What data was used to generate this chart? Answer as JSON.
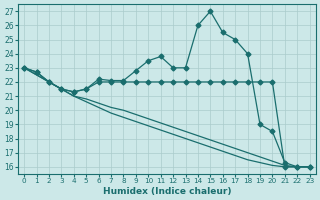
{
  "xlabel": "Humidex (Indice chaleur)",
  "xlim": [
    -0.5,
    23.5
  ],
  "ylim": [
    15.5,
    27.5
  ],
  "xticks": [
    0,
    1,
    2,
    3,
    4,
    5,
    6,
    7,
    8,
    9,
    10,
    11,
    12,
    13,
    14,
    15,
    16,
    17,
    18,
    19,
    20,
    21,
    22,
    23
  ],
  "yticks": [
    16,
    17,
    18,
    19,
    20,
    21,
    22,
    23,
    24,
    25,
    26,
    27
  ],
  "bg_color": "#cce8e8",
  "grid_color": "#aacccc",
  "line_color": "#1a6e6e",
  "lines": [
    {
      "x": [
        0,
        1,
        2,
        3,
        4,
        5,
        6,
        7,
        8,
        9,
        10,
        11,
        12,
        13,
        14,
        15,
        16,
        17,
        18,
        19,
        20,
        21,
        22,
        23
      ],
      "y": [
        23,
        22.7,
        22.0,
        21.5,
        21.3,
        21.5,
        22.2,
        22.1,
        22.1,
        22.8,
        23.5,
        23.8,
        23.0,
        23.0,
        26.0,
        27.0,
        25.5,
        25.0,
        24.0,
        19.0,
        18.5,
        16.3,
        16.0,
        16.0
      ]
    },
    {
      "x": [
        0,
        1,
        2,
        3,
        4,
        5,
        6,
        7,
        8,
        9,
        10,
        11,
        12,
        13,
        14,
        15,
        16,
        17,
        18,
        19,
        20,
        21,
        22,
        23
      ],
      "y": [
        23,
        22.7,
        22.0,
        21.5,
        21.3,
        21.5,
        22.0,
        22.0,
        22.0,
        22.0,
        22.0,
        22.0,
        22.0,
        22.0,
        22.0,
        22.0,
        22.0,
        22.0,
        22.0,
        22.0,
        22.0,
        16.0,
        16.0,
        16.0
      ]
    },
    {
      "x": [
        0,
        1,
        2,
        3,
        4,
        5,
        6,
        7,
        8,
        9,
        10,
        11,
        12,
        13,
        14,
        15,
        16,
        17,
        18,
        19,
        20,
        21,
        22,
        23
      ],
      "y": [
        23,
        22.5,
        22.0,
        21.5,
        21.0,
        20.8,
        20.5,
        20.2,
        20.0,
        19.7,
        19.4,
        19.1,
        18.8,
        18.5,
        18.2,
        17.9,
        17.6,
        17.3,
        17.0,
        16.7,
        16.4,
        16.1,
        16.0,
        16.0
      ]
    },
    {
      "x": [
        0,
        1,
        2,
        3,
        4,
        5,
        6,
        7,
        8,
        9,
        10,
        11,
        12,
        13,
        14,
        15,
        16,
        17,
        18,
        19,
        20,
        21,
        22,
        23
      ],
      "y": [
        23,
        22.5,
        22.0,
        21.5,
        21.0,
        20.6,
        20.2,
        19.8,
        19.5,
        19.2,
        18.9,
        18.6,
        18.3,
        18.0,
        17.7,
        17.4,
        17.1,
        16.8,
        16.5,
        16.3,
        16.1,
        16.0,
        16.0,
        16.0
      ]
    }
  ]
}
